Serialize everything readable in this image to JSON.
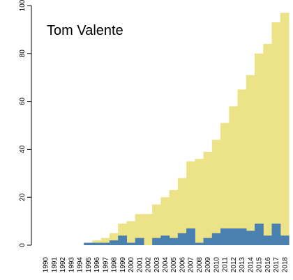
{
  "chart_data": {
    "type": "area",
    "title": "Tom Valente",
    "xlabel": "",
    "ylabel": "",
    "ylim": [
      0,
      100
    ],
    "yticks": [
      0,
      20,
      40,
      60,
      80,
      100
    ],
    "grid": false,
    "legend": "none",
    "categories": [
      "1990",
      "1991",
      "1992",
      "1993",
      "1994",
      "1995",
      "1996",
      "1997",
      "1998",
      "1999",
      "2000",
      "2001",
      "2002",
      "2003",
      "2004",
      "2005",
      "2006",
      "2007",
      "2008",
      "2009",
      "2010",
      "2011",
      "2012",
      "2013",
      "2014",
      "2015",
      "2016",
      "2017",
      "2018"
    ],
    "series": [
      {
        "color": "#ece287",
        "values": [
          0,
          0,
          0,
          0,
          0,
          1,
          2,
          3,
          5,
          9,
          10,
          13,
          13,
          17,
          20,
          23,
          28,
          35,
          36,
          39,
          44,
          51,
          58,
          65,
          71,
          80,
          84,
          93,
          97
        ]
      },
      {
        "color": "#4a80b0",
        "values": [
          0,
          0,
          0,
          0,
          0,
          1,
          1,
          1,
          2,
          4,
          1,
          3,
          0,
          3,
          4,
          3,
          5,
          7,
          1,
          3,
          5,
          7,
          7,
          7,
          6,
          9,
          4,
          9,
          4
        ]
      }
    ]
  }
}
